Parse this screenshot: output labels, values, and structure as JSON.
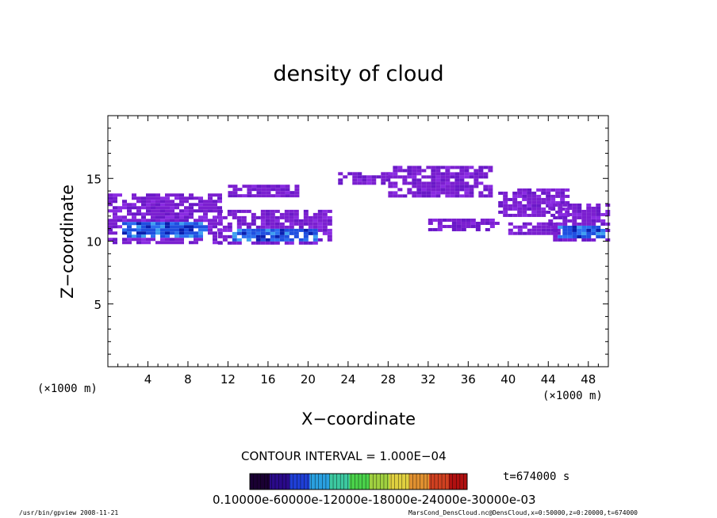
{
  "chart_data": {
    "type": "heatmap",
    "title": "density of cloud",
    "xlabel": "X−coordinate",
    "ylabel": "Z−coordinate",
    "x_unit": "(×1000 m)",
    "xlim": [
      0,
      50
    ],
    "ylim": [
      0,
      20
    ],
    "x_ticks": [
      4,
      8,
      12,
      16,
      20,
      24,
      28,
      32,
      36,
      40,
      44,
      48
    ],
    "y_ticks": [
      5,
      10,
      15
    ],
    "contour_interval": "CONTOUR INTERVAL = 1.000E−04",
    "time_label": "t=674000 s",
    "colorbar_tick_text": "0.10000e-60000e-12000e-18000e-24000e-30000e-03",
    "colorbar_colors": [
      "#1a0033",
      "#2a0a8a",
      "#1f3fd6",
      "#2aa0e0",
      "#3cc8a0",
      "#4ad24a",
      "#a0d040",
      "#e0d040",
      "#e09030",
      "#d04020",
      "#b01010"
    ],
    "cloud_regions": [
      {
        "x_start": 0,
        "x_end": 11,
        "z_bottom": 10.0,
        "z_top": 13.8,
        "core": "blue"
      },
      {
        "x_start": 11,
        "x_end": 22,
        "z_bottom": 9.8,
        "z_top": 12.5,
        "core": "blue"
      },
      {
        "x_start": 12,
        "x_end": 19,
        "z_bottom": 13.5,
        "z_top": 14.5,
        "core": "purple"
      },
      {
        "x_start": 23,
        "x_end": 28,
        "z_bottom": 14.5,
        "z_top": 15.5,
        "core": "purple"
      },
      {
        "x_start": 28,
        "x_end": 38,
        "z_bottom": 13.5,
        "z_top": 16.0,
        "core": "purple"
      },
      {
        "x_start": 32,
        "x_end": 39,
        "z_bottom": 10.8,
        "z_top": 11.8,
        "core": "purple"
      },
      {
        "x_start": 39,
        "x_end": 46,
        "z_bottom": 12.0,
        "z_top": 14.2,
        "core": "purple"
      },
      {
        "x_start": 40,
        "x_end": 45,
        "z_bottom": 10.5,
        "z_top": 11.5,
        "core": "purple"
      },
      {
        "x_start": 44,
        "x_end": 50,
        "z_bottom": 10.0,
        "z_top": 13.0,
        "core": "blue"
      }
    ]
  },
  "footer": {
    "left": "/usr/bin/gpview   2008-11-21",
    "right": "MarsCond_DensCloud.nc@DensCloud,x=0:50000,z=0:20000,t=674000"
  }
}
